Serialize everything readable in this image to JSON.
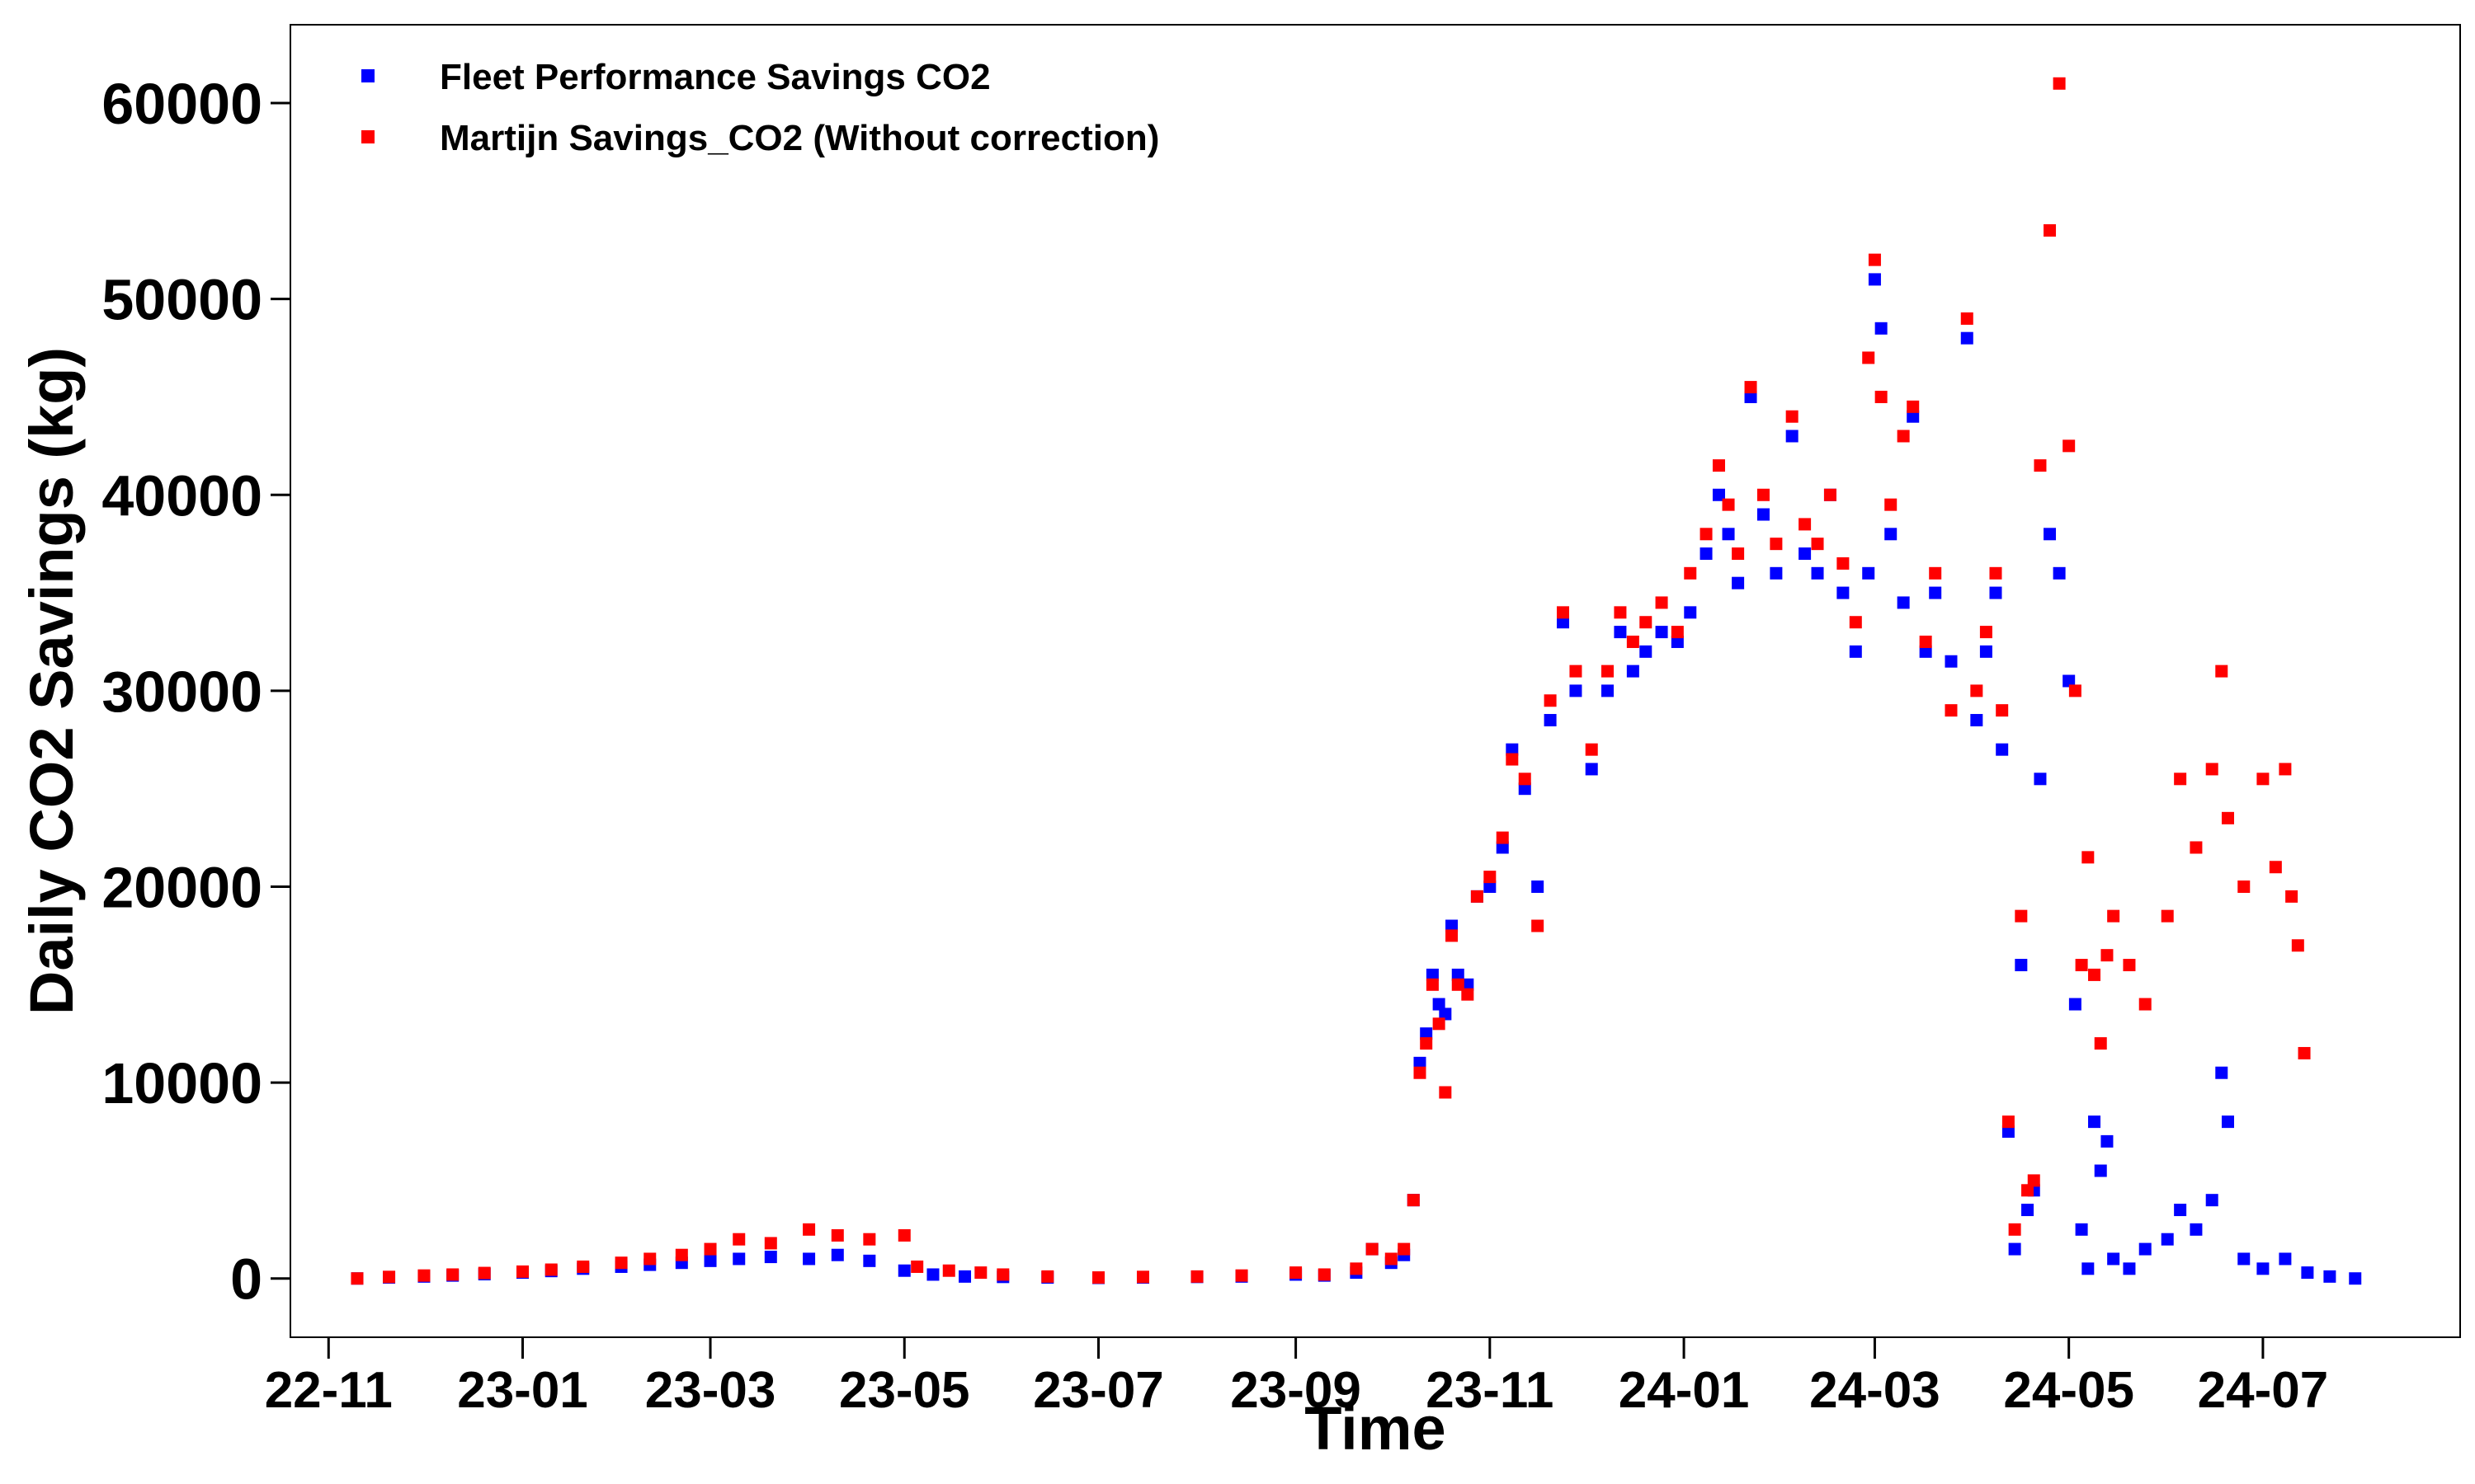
{
  "chart_data": {
    "type": "scatter",
    "title": "",
    "xlabel": "Time",
    "ylabel": "Daily CO2 Savings (kg)",
    "xlim": [
      "2022-10-20",
      "2024-09-01"
    ],
    "ylim": [
      -3000,
      64000
    ],
    "x_ticks": [
      {
        "date": "2022-11-01",
        "label": "22-11"
      },
      {
        "date": "2023-01-01",
        "label": "23-01"
      },
      {
        "date": "2023-03-01",
        "label": "23-03"
      },
      {
        "date": "2023-05-01",
        "label": "23-05"
      },
      {
        "date": "2023-07-01",
        "label": "23-07"
      },
      {
        "date": "2023-09-01",
        "label": "23-09"
      },
      {
        "date": "2023-11-01",
        "label": "23-11"
      },
      {
        "date": "2024-01-01",
        "label": "24-01"
      },
      {
        "date": "2024-03-01",
        "label": "24-03"
      },
      {
        "date": "2024-05-01",
        "label": "24-05"
      },
      {
        "date": "2024-07-01",
        "label": "24-07"
      }
    ],
    "y_ticks": [
      0,
      10000,
      20000,
      30000,
      40000,
      50000,
      60000
    ],
    "grid": false,
    "legend": "top-left",
    "series": [
      {
        "name": "Fleet Performance Savings CO2",
        "color": "#0000ff",
        "marker": "square",
        "points": [
          [
            "2022-11-10",
            0
          ],
          [
            "2022-11-20",
            50
          ],
          [
            "2022-12-01",
            100
          ],
          [
            "2022-12-10",
            150
          ],
          [
            "2022-12-20",
            220
          ],
          [
            "2023-01-01",
            300
          ],
          [
            "2023-01-10",
            380
          ],
          [
            "2023-01-20",
            500
          ],
          [
            "2023-02-01",
            600
          ],
          [
            "2023-02-10",
            700
          ],
          [
            "2023-02-20",
            800
          ],
          [
            "2023-03-01",
            900
          ],
          [
            "2023-03-10",
            1000
          ],
          [
            "2023-03-20",
            1100
          ],
          [
            "2023-04-01",
            1000
          ],
          [
            "2023-04-10",
            1200
          ],
          [
            "2023-04-20",
            900
          ],
          [
            "2023-05-01",
            400
          ],
          [
            "2023-05-10",
            200
          ],
          [
            "2023-05-20",
            100
          ],
          [
            "2023-06-01",
            80
          ],
          [
            "2023-06-15",
            50
          ],
          [
            "2023-07-01",
            30
          ],
          [
            "2023-07-15",
            50
          ],
          [
            "2023-08-01",
            80
          ],
          [
            "2023-08-15",
            100
          ],
          [
            "2023-09-01",
            200
          ],
          [
            "2023-09-10",
            150
          ],
          [
            "2023-09-20",
            300
          ],
          [
            "2023-09-25",
            1500
          ],
          [
            "2023-10-01",
            800
          ],
          [
            "2023-10-05",
            1200
          ],
          [
            "2023-10-08",
            4000
          ],
          [
            "2023-10-10",
            11000
          ],
          [
            "2023-10-12",
            12500
          ],
          [
            "2023-10-14",
            15500
          ],
          [
            "2023-10-16",
            14000
          ],
          [
            "2023-10-18",
            13500
          ],
          [
            "2023-10-20",
            18000
          ],
          [
            "2023-10-22",
            15500
          ],
          [
            "2023-10-25",
            15000
          ],
          [
            "2023-10-28",
            19500
          ],
          [
            "2023-11-01",
            20000
          ],
          [
            "2023-11-05",
            22000
          ],
          [
            "2023-11-08",
            27000
          ],
          [
            "2023-11-12",
            25000
          ],
          [
            "2023-11-16",
            20000
          ],
          [
            "2023-11-20",
            28500
          ],
          [
            "2023-11-24",
            33500
          ],
          [
            "2023-11-28",
            30000
          ],
          [
            "2023-12-03",
            26000
          ],
          [
            "2023-12-08",
            30000
          ],
          [
            "2023-12-12",
            33000
          ],
          [
            "2023-12-16",
            31000
          ],
          [
            "2023-12-20",
            32000
          ],
          [
            "2023-12-25",
            33000
          ],
          [
            "2023-12-30",
            32500
          ],
          [
            "2024-01-03",
            34000
          ],
          [
            "2024-01-08",
            37000
          ],
          [
            "2024-01-12",
            40000
          ],
          [
            "2024-01-15",
            38000
          ],
          [
            "2024-01-18",
            35500
          ],
          [
            "2024-01-22",
            45000
          ],
          [
            "2024-01-26",
            39000
          ],
          [
            "2024-01-30",
            36000
          ],
          [
            "2024-02-04",
            43000
          ],
          [
            "2024-02-08",
            37000
          ],
          [
            "2024-02-12",
            36000
          ],
          [
            "2024-02-16",
            40000
          ],
          [
            "2024-02-20",
            35000
          ],
          [
            "2024-02-24",
            32000
          ],
          [
            "2024-02-28",
            36000
          ],
          [
            "2024-03-01",
            51000
          ],
          [
            "2024-03-03",
            48500
          ],
          [
            "2024-03-06",
            38000
          ],
          [
            "2024-03-10",
            34500
          ],
          [
            "2024-03-13",
            44000
          ],
          [
            "2024-03-17",
            32000
          ],
          [
            "2024-03-20",
            35000
          ],
          [
            "2024-03-25",
            31500
          ],
          [
            "2024-03-30",
            48000
          ],
          [
            "2024-04-02",
            28500
          ],
          [
            "2024-04-05",
            32000
          ],
          [
            "2024-04-08",
            35000
          ],
          [
            "2024-04-10",
            27000
          ],
          [
            "2024-04-12",
            7500
          ],
          [
            "2024-04-14",
            1500
          ],
          [
            "2024-04-16",
            16000
          ],
          [
            "2024-04-18",
            3500
          ],
          [
            "2024-04-20",
            4500
          ],
          [
            "2024-04-22",
            25500
          ],
          [
            "2024-04-25",
            38000
          ],
          [
            "2024-04-28",
            36000
          ],
          [
            "2024-05-01",
            30500
          ],
          [
            "2024-05-03",
            14000
          ],
          [
            "2024-05-05",
            2500
          ],
          [
            "2024-05-07",
            500
          ],
          [
            "2024-05-09",
            8000
          ],
          [
            "2024-05-11",
            5500
          ],
          [
            "2024-05-13",
            7000
          ],
          [
            "2024-05-15",
            1000
          ],
          [
            "2024-05-20",
            500
          ],
          [
            "2024-05-25",
            1500
          ],
          [
            "2024-06-01",
            2000
          ],
          [
            "2024-06-05",
            3500
          ],
          [
            "2024-06-10",
            2500
          ],
          [
            "2024-06-15",
            4000
          ],
          [
            "2024-06-18",
            10500
          ],
          [
            "2024-06-20",
            8000
          ],
          [
            "2024-06-25",
            1000
          ],
          [
            "2024-07-01",
            500
          ],
          [
            "2024-07-08",
            1000
          ],
          [
            "2024-07-15",
            300
          ],
          [
            "2024-07-22",
            100
          ],
          [
            "2024-07-30",
            0
          ]
        ]
      },
      {
        "name": "Martijn Savings_CO2 (Without correction)",
        "color": "#ff0000",
        "marker": "square",
        "points": [
          [
            "2022-11-10",
            0
          ],
          [
            "2022-11-20",
            80
          ],
          [
            "2022-12-01",
            150
          ],
          [
            "2022-12-10",
            200
          ],
          [
            "2022-12-20",
            280
          ],
          [
            "2023-01-01",
            350
          ],
          [
            "2023-01-10",
            450
          ],
          [
            "2023-01-20",
            600
          ],
          [
            "2023-02-01",
            800
          ],
          [
            "2023-02-10",
            1000
          ],
          [
            "2023-02-20",
            1200
          ],
          [
            "2023-03-01",
            1500
          ],
          [
            "2023-03-10",
            2000
          ],
          [
            "2023-03-20",
            1800
          ],
          [
            "2023-04-01",
            2500
          ],
          [
            "2023-04-10",
            2200
          ],
          [
            "2023-04-20",
            2000
          ],
          [
            "2023-05-01",
            2200
          ],
          [
            "2023-05-05",
            600
          ],
          [
            "2023-05-15",
            400
          ],
          [
            "2023-05-25",
            300
          ],
          [
            "2023-06-01",
            200
          ],
          [
            "2023-06-15",
            100
          ],
          [
            "2023-07-01",
            50
          ],
          [
            "2023-07-15",
            80
          ],
          [
            "2023-08-01",
            100
          ],
          [
            "2023-08-15",
            150
          ],
          [
            "2023-09-01",
            300
          ],
          [
            "2023-09-10",
            200
          ],
          [
            "2023-09-20",
            500
          ],
          [
            "2023-09-25",
            1500
          ],
          [
            "2023-10-01",
            1000
          ],
          [
            "2023-10-05",
            1500
          ],
          [
            "2023-10-08",
            4000
          ],
          [
            "2023-10-10",
            10500
          ],
          [
            "2023-10-12",
            12000
          ],
          [
            "2023-10-14",
            15000
          ],
          [
            "2023-10-16",
            13000
          ],
          [
            "2023-10-18",
            9500
          ],
          [
            "2023-10-20",
            17500
          ],
          [
            "2023-10-22",
            15000
          ],
          [
            "2023-10-25",
            14500
          ],
          [
            "2023-10-28",
            19500
          ],
          [
            "2023-11-01",
            20500
          ],
          [
            "2023-11-05",
            22500
          ],
          [
            "2023-11-08",
            26500
          ],
          [
            "2023-11-12",
            25500
          ],
          [
            "2023-11-16",
            18000
          ],
          [
            "2023-11-20",
            29500
          ],
          [
            "2023-11-24",
            34000
          ],
          [
            "2023-11-28",
            31000
          ],
          [
            "2023-12-03",
            27000
          ],
          [
            "2023-12-08",
            31000
          ],
          [
            "2023-12-12",
            34000
          ],
          [
            "2023-12-16",
            32500
          ],
          [
            "2023-12-20",
            33500
          ],
          [
            "2023-12-25",
            34500
          ],
          [
            "2023-12-30",
            33000
          ],
          [
            "2024-01-03",
            36000
          ],
          [
            "2024-01-08",
            38000
          ],
          [
            "2024-01-12",
            41500
          ],
          [
            "2024-01-15",
            39500
          ],
          [
            "2024-01-18",
            37000
          ],
          [
            "2024-01-22",
            45500
          ],
          [
            "2024-01-26",
            40000
          ],
          [
            "2024-01-30",
            37500
          ],
          [
            "2024-02-04",
            44000
          ],
          [
            "2024-02-08",
            38500
          ],
          [
            "2024-02-12",
            37500
          ],
          [
            "2024-02-16",
            40000
          ],
          [
            "2024-02-20",
            36500
          ],
          [
            "2024-02-24",
            33500
          ],
          [
            "2024-02-28",
            47000
          ],
          [
            "2024-03-01",
            52000
          ],
          [
            "2024-03-03",
            45000
          ],
          [
            "2024-03-06",
            39500
          ],
          [
            "2024-03-10",
            43000
          ],
          [
            "2024-03-13",
            44500
          ],
          [
            "2024-03-17",
            32500
          ],
          [
            "2024-03-20",
            36000
          ],
          [
            "2024-03-25",
            29000
          ],
          [
            "2024-03-30",
            49000
          ],
          [
            "2024-04-02",
            30000
          ],
          [
            "2024-04-05",
            33000
          ],
          [
            "2024-04-08",
            36000
          ],
          [
            "2024-04-10",
            29000
          ],
          [
            "2024-04-12",
            8000
          ],
          [
            "2024-04-14",
            2500
          ],
          [
            "2024-04-16",
            18500
          ],
          [
            "2024-04-18",
            4500
          ],
          [
            "2024-04-20",
            5000
          ],
          [
            "2024-04-22",
            41500
          ],
          [
            "2024-04-25",
            53500
          ],
          [
            "2024-04-28",
            61000
          ],
          [
            "2024-05-01",
            42500
          ],
          [
            "2024-05-03",
            30000
          ],
          [
            "2024-05-05",
            16000
          ],
          [
            "2024-05-07",
            21500
          ],
          [
            "2024-05-09",
            15500
          ],
          [
            "2024-05-11",
            12000
          ],
          [
            "2024-05-13",
            16500
          ],
          [
            "2024-05-15",
            18500
          ],
          [
            "2024-05-20",
            16000
          ],
          [
            "2024-05-25",
            14000
          ],
          [
            "2024-06-01",
            18500
          ],
          [
            "2024-06-05",
            25500
          ],
          [
            "2024-06-10",
            22000
          ],
          [
            "2024-06-15",
            26000
          ],
          [
            "2024-06-18",
            31000
          ],
          [
            "2024-06-20",
            23500
          ],
          [
            "2024-06-25",
            20000
          ],
          [
            "2024-07-01",
            25500
          ],
          [
            "2024-07-05",
            21000
          ],
          [
            "2024-07-08",
            26000
          ],
          [
            "2024-07-10",
            19500
          ],
          [
            "2024-07-12",
            17000
          ],
          [
            "2024-07-14",
            11500
          ]
        ]
      }
    ]
  }
}
